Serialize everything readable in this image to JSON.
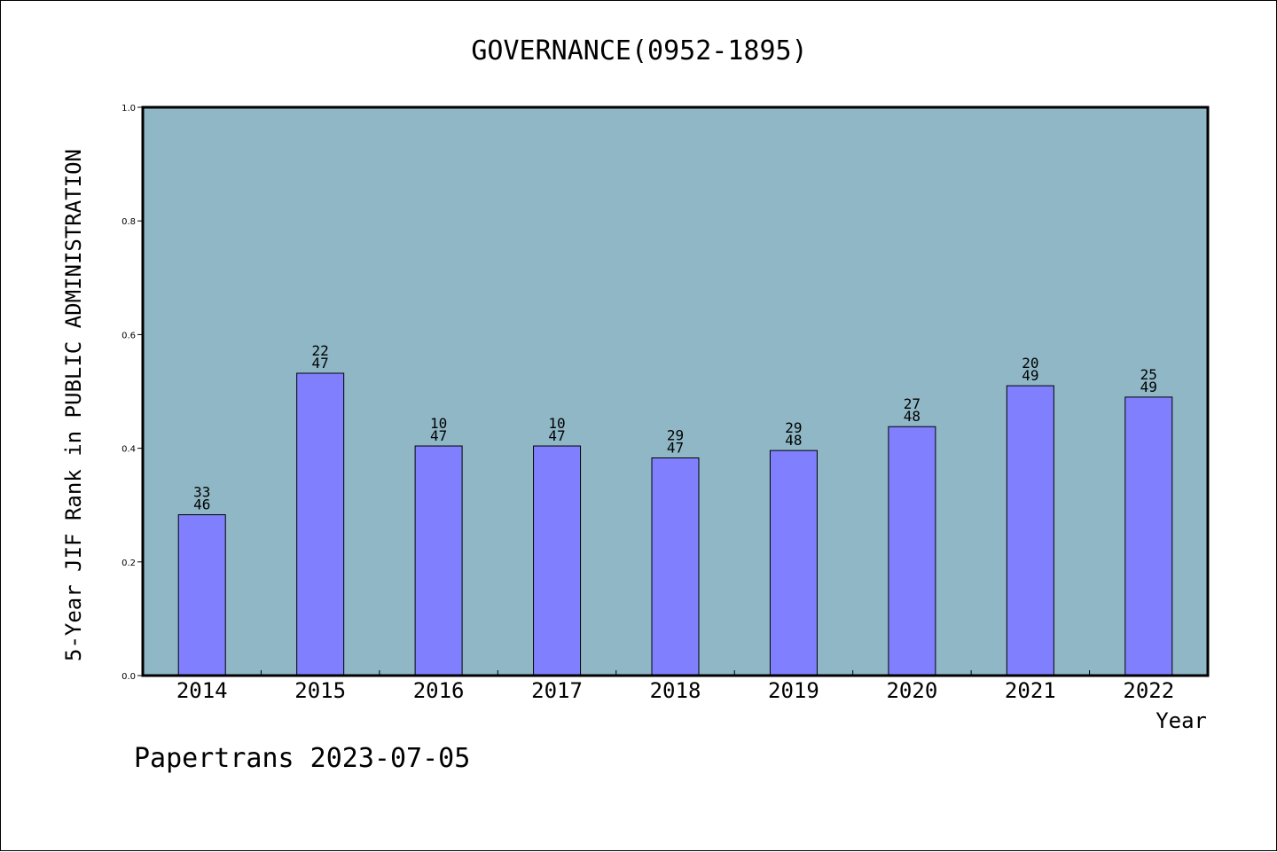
{
  "chart_data": {
    "type": "bar",
    "title": "GOVERNANCE(0952-1895)",
    "xlabel": "Year",
    "ylabel": "5-Year JIF Rank in PUBLIC ADMINISTRATION",
    "categories": [
      "2014",
      "2015",
      "2016",
      "2017",
      "2018",
      "2019",
      "2020",
      "2021",
      "2022"
    ],
    "values": [
      0.283,
      0.532,
      0.404,
      0.404,
      0.383,
      0.396,
      0.438,
      0.51,
      0.49
    ],
    "ranks": [
      "33",
      "22",
      "10",
      "10",
      "29",
      "29",
      "27",
      "20",
      "25"
    ],
    "totals": [
      "46",
      "47",
      "47",
      "47",
      "47",
      "48",
      "48",
      "49",
      "49"
    ],
    "ylim": [
      0,
      1
    ],
    "yticks": [
      "0.0",
      "0.2",
      "0.4",
      "0.6",
      "0.8",
      "1.0"
    ],
    "grid": false,
    "colors": {
      "plot_background": "#8fb7c6",
      "bar": "#8080ff"
    }
  },
  "footer": "Papertrans 2023-07-05"
}
